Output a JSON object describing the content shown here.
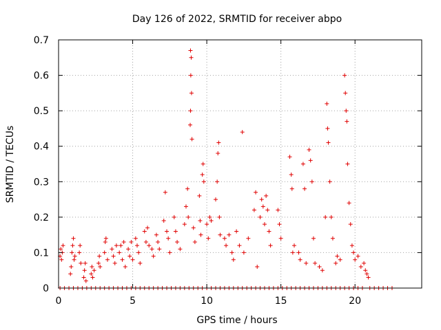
{
  "chart_data": {
    "type": "scatter",
    "title": "Day 126 of 2022, SRMTID for receiver abpo",
    "xlabel": "GPS time / hours",
    "ylabel": "SRMTID / TECUs",
    "xlim": [
      0,
      24.5
    ],
    "ylim": [
      0,
      0.7
    ],
    "x_ticks": [
      0,
      5,
      10,
      15,
      20
    ],
    "x_tick_labels": [
      "0",
      "5",
      "10",
      "15",
      "20"
    ],
    "y_ticks": [
      0,
      0.1,
      0.2,
      0.3,
      0.4,
      0.5,
      0.6,
      0.7
    ],
    "y_tick_labels": [
      "0",
      "0.1",
      "0.2",
      "0.3",
      "0.4",
      "0.5",
      "0.6",
      "0.7"
    ],
    "grid": true,
    "marker": "+",
    "marker_color": "#e00000",
    "series": [
      {
        "name": "SRMTID",
        "points": [
          [
            0.1,
            0.09
          ],
          [
            0.15,
            0.11
          ],
          [
            0.2,
            0.08
          ],
          [
            0.25,
            0.1
          ],
          [
            0.3,
            0.12
          ],
          [
            0.8,
            0.04
          ],
          [
            0.85,
            0.06
          ],
          [
            0.9,
            0.1
          ],
          [
            0.95,
            0.12
          ],
          [
            1.0,
            0.14
          ],
          [
            1.05,
            0.08
          ],
          [
            1.1,
            0.09
          ],
          [
            1.4,
            0.1
          ],
          [
            1.45,
            0.12
          ],
          [
            1.5,
            0.07
          ],
          [
            1.7,
            0.03
          ],
          [
            1.75,
            0.05
          ],
          [
            1.8,
            0.07
          ],
          [
            1.85,
            0.02
          ],
          [
            2.2,
            0.04
          ],
          [
            2.25,
            0.06
          ],
          [
            2.3,
            0.03
          ],
          [
            2.4,
            0.05
          ],
          [
            2.7,
            0.07
          ],
          [
            2.75,
            0.09
          ],
          [
            2.8,
            0.06
          ],
          [
            3.1,
            0.1
          ],
          [
            3.15,
            0.13
          ],
          [
            3.2,
            0.14
          ],
          [
            3.3,
            0.08
          ],
          [
            3.6,
            0.11
          ],
          [
            3.7,
            0.09
          ],
          [
            3.8,
            0.07
          ],
          [
            3.9,
            0.12
          ],
          [
            4.1,
            0.1
          ],
          [
            4.2,
            0.12
          ],
          [
            4.3,
            0.08
          ],
          [
            4.4,
            0.13
          ],
          [
            4.5,
            0.06
          ],
          [
            4.7,
            0.11
          ],
          [
            4.8,
            0.09
          ],
          [
            4.9,
            0.13
          ],
          [
            5.0,
            0.08
          ],
          [
            5.2,
            0.14
          ],
          [
            5.3,
            0.12
          ],
          [
            5.4,
            0.1
          ],
          [
            5.5,
            0.07
          ],
          [
            5.8,
            0.16
          ],
          [
            5.9,
            0.13
          ],
          [
            6.0,
            0.17
          ],
          [
            6.1,
            0.12
          ],
          [
            6.3,
            0.11
          ],
          [
            6.4,
            0.09
          ],
          [
            6.6,
            0.15
          ],
          [
            6.7,
            0.13
          ],
          [
            6.8,
            0.11
          ],
          [
            7.1,
            0.19
          ],
          [
            7.2,
            0.27
          ],
          [
            7.3,
            0.16
          ],
          [
            7.4,
            0.14
          ],
          [
            7.5,
            0.1
          ],
          [
            7.8,
            0.2
          ],
          [
            7.9,
            0.16
          ],
          [
            8.0,
            0.13
          ],
          [
            8.2,
            0.11
          ],
          [
            8.5,
            0.18
          ],
          [
            8.6,
            0.23
          ],
          [
            8.7,
            0.28
          ],
          [
            8.75,
            0.2
          ],
          [
            8.9,
            0.67
          ],
          [
            8.95,
            0.65
          ],
          [
            8.92,
            0.6
          ],
          [
            8.97,
            0.55
          ],
          [
            8.9,
            0.5
          ],
          [
            8.88,
            0.46
          ],
          [
            9.0,
            0.42
          ],
          [
            9.1,
            0.17
          ],
          [
            9.2,
            0.13
          ],
          [
            9.5,
            0.26
          ],
          [
            9.55,
            0.19
          ],
          [
            9.6,
            0.15
          ],
          [
            9.7,
            0.32
          ],
          [
            9.75,
            0.35
          ],
          [
            9.8,
            0.3
          ],
          [
            10.0,
            0.18
          ],
          [
            10.1,
            0.14
          ],
          [
            10.2,
            0.2
          ],
          [
            10.3,
            0.19
          ],
          [
            10.6,
            0.25
          ],
          [
            10.7,
            0.3
          ],
          [
            10.75,
            0.38
          ],
          [
            10.8,
            0.41
          ],
          [
            10.85,
            0.2
          ],
          [
            10.9,
            0.15
          ],
          [
            11.2,
            0.14
          ],
          [
            11.3,
            0.12
          ],
          [
            11.5,
            0.15
          ],
          [
            11.7,
            0.1
          ],
          [
            11.8,
            0.08
          ],
          [
            12.0,
            0.16
          ],
          [
            12.2,
            0.12
          ],
          [
            12.4,
            0.44
          ],
          [
            12.5,
            0.1
          ],
          [
            12.8,
            0.14
          ],
          [
            13.2,
            0.22
          ],
          [
            13.3,
            0.27
          ],
          [
            13.4,
            0.06
          ],
          [
            13.6,
            0.2
          ],
          [
            13.7,
            0.25
          ],
          [
            13.8,
            0.23
          ],
          [
            13.9,
            0.18
          ],
          [
            14.0,
            0.26
          ],
          [
            14.1,
            0.22
          ],
          [
            14.2,
            0.16
          ],
          [
            14.3,
            0.12
          ],
          [
            14.8,
            0.22
          ],
          [
            14.9,
            0.18
          ],
          [
            15.0,
            0.14
          ],
          [
            15.6,
            0.37
          ],
          [
            15.7,
            0.32
          ],
          [
            15.75,
            0.28
          ],
          [
            15.8,
            0.1
          ],
          [
            15.9,
            0.12
          ],
          [
            16.2,
            0.1
          ],
          [
            16.3,
            0.08
          ],
          [
            16.5,
            0.35
          ],
          [
            16.6,
            0.28
          ],
          [
            16.7,
            0.07
          ],
          [
            16.9,
            0.39
          ],
          [
            17.0,
            0.36
          ],
          [
            17.1,
            0.3
          ],
          [
            17.2,
            0.14
          ],
          [
            17.3,
            0.07
          ],
          [
            17.6,
            0.06
          ],
          [
            17.8,
            0.05
          ],
          [
            18.0,
            0.2
          ],
          [
            18.1,
            0.52
          ],
          [
            18.15,
            0.45
          ],
          [
            18.2,
            0.41
          ],
          [
            18.3,
            0.3
          ],
          [
            18.4,
            0.2
          ],
          [
            18.5,
            0.14
          ],
          [
            18.7,
            0.07
          ],
          [
            18.8,
            0.09
          ],
          [
            19.0,
            0.08
          ],
          [
            19.3,
            0.6
          ],
          [
            19.35,
            0.55
          ],
          [
            19.4,
            0.5
          ],
          [
            19.45,
            0.47
          ],
          [
            19.5,
            0.35
          ],
          [
            19.6,
            0.24
          ],
          [
            19.7,
            0.18
          ],
          [
            19.8,
            0.12
          ],
          [
            19.9,
            0.1
          ],
          [
            20.0,
            0.08
          ],
          [
            20.2,
            0.09
          ],
          [
            20.4,
            0.06
          ],
          [
            20.6,
            0.07
          ],
          [
            20.7,
            0.05
          ],
          [
            20.8,
            0.04
          ],
          [
            20.9,
            0.03
          ]
        ]
      },
      {
        "name": "zero-baseline",
        "points": [
          [
            0.1,
            0
          ],
          [
            0.4,
            0
          ],
          [
            0.7,
            0
          ],
          [
            1.0,
            0
          ],
          [
            1.3,
            0
          ],
          [
            1.6,
            0
          ],
          [
            1.9,
            0
          ],
          [
            2.2,
            0
          ],
          [
            2.5,
            0
          ],
          [
            2.8,
            0
          ],
          [
            3.1,
            0
          ],
          [
            3.4,
            0
          ],
          [
            3.7,
            0
          ],
          [
            4.0,
            0
          ],
          [
            4.3,
            0
          ],
          [
            4.6,
            0
          ],
          [
            4.9,
            0
          ],
          [
            5.2,
            0
          ],
          [
            5.5,
            0
          ],
          [
            5.8,
            0
          ],
          [
            6.1,
            0
          ],
          [
            6.4,
            0
          ],
          [
            6.7,
            0
          ],
          [
            7.0,
            0
          ],
          [
            7.3,
            0
          ],
          [
            7.6,
            0
          ],
          [
            7.9,
            0
          ],
          [
            8.2,
            0
          ],
          [
            8.5,
            0
          ],
          [
            8.8,
            0
          ],
          [
            9.1,
            0
          ],
          [
            9.4,
            0
          ],
          [
            9.7,
            0
          ],
          [
            10.0,
            0
          ],
          [
            10.3,
            0
          ],
          [
            10.6,
            0
          ],
          [
            10.9,
            0
          ],
          [
            11.2,
            0
          ],
          [
            11.5,
            0
          ],
          [
            11.8,
            0
          ],
          [
            12.1,
            0
          ],
          [
            12.4,
            0
          ],
          [
            12.7,
            0
          ],
          [
            13.0,
            0
          ],
          [
            13.3,
            0
          ],
          [
            13.6,
            0
          ],
          [
            13.9,
            0
          ],
          [
            14.2,
            0
          ],
          [
            14.5,
            0
          ],
          [
            14.8,
            0
          ],
          [
            15.1,
            0
          ],
          [
            15.4,
            0
          ],
          [
            15.7,
            0
          ],
          [
            16.0,
            0
          ],
          [
            16.3,
            0
          ],
          [
            16.6,
            0
          ],
          [
            16.9,
            0
          ],
          [
            17.2,
            0
          ],
          [
            17.5,
            0
          ],
          [
            17.8,
            0
          ],
          [
            18.1,
            0
          ],
          [
            18.4,
            0
          ],
          [
            18.7,
            0
          ],
          [
            19.0,
            0
          ],
          [
            19.3,
            0
          ],
          [
            19.6,
            0
          ],
          [
            19.9,
            0
          ],
          [
            20.2,
            0
          ],
          [
            20.5,
            0
          ],
          [
            21.0,
            0
          ],
          [
            21.3,
            0
          ],
          [
            21.6,
            0
          ],
          [
            21.9,
            0
          ],
          [
            22.2,
            0
          ],
          [
            22.5,
            0
          ]
        ]
      }
    ]
  }
}
